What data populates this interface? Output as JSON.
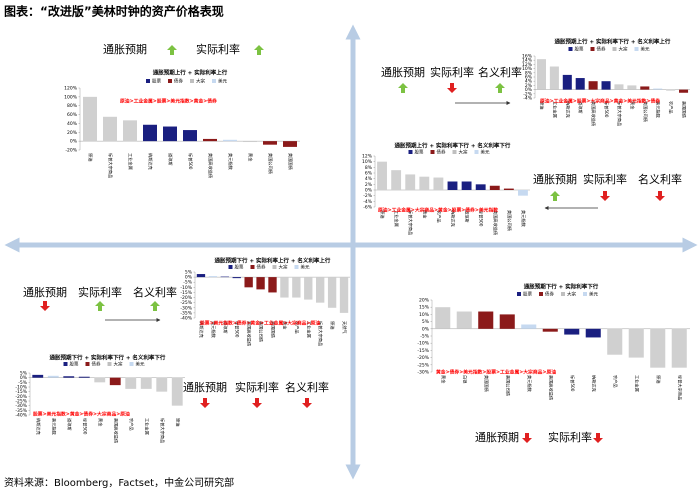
{
  "header": {
    "title": "图表：“改进版”美林时钟的资产价格表现",
    "source": "资料来源：Bloomberg，Factset，中金公司研究部"
  },
  "quadrants": [
    {
      "indicators": [
        {
          "label": "通胀预期",
          "dir": "up"
        },
        {
          "label": "实际利率",
          "dir": "up"
        }
      ]
    },
    {
      "indicators": [
        {
          "label": "通胀预期",
          "dir": "up"
        },
        {
          "label": "实际利率",
          "dir": "down"
        },
        {
          "label": "名义利率",
          "dir": "up"
        }
      ]
    },
    {
      "indicators": [
        {
          "label": "通胀预期",
          "dir": "up"
        },
        {
          "label": "实际利率",
          "dir": "down"
        },
        {
          "label": "名义利率",
          "dir": "down"
        }
      ]
    },
    {
      "indicators": [
        {
          "label": "通胀预期",
          "dir": "down"
        },
        {
          "label": "实际利率",
          "dir": "up"
        },
        {
          "label": "名义利率",
          "dir": "up"
        }
      ]
    },
    {
      "indicators": [
        {
          "label": "通胀预期",
          "dir": "down"
        },
        {
          "label": "实际利率",
          "dir": "down"
        },
        {
          "label": "名义利率",
          "dir": "down"
        }
      ]
    },
    {
      "indicators": [
        {
          "label": "通胀预期",
          "dir": "down"
        },
        {
          "label": "实际利率",
          "dir": "down"
        }
      ]
    }
  ],
  "chart_data": [
    {
      "type": "bar",
      "title": "通胀预期上行 + 实际利率上行",
      "annotation": "原油>工业金属>股票>美元指数>黄金>债券",
      "legend": [
        {
          "name": "股票",
          "color": "#1a1f80"
        },
        {
          "name": "债券",
          "color": "#8b1a1a"
        },
        {
          "name": "大宗",
          "color": "#bfbfbf"
        },
        {
          "name": "美元",
          "color": "#c6d9f0"
        }
      ],
      "categories": [
        "原油",
        "标普大宗商品",
        "工业金属",
        "纳斯达克",
        "道琼斯",
        "标普500",
        "美国高收益债",
        "美元指数",
        "黄金",
        "美国公司债",
        "美国国债"
      ],
      "values": [
        100,
        55,
        47,
        37,
        33,
        25,
        5,
        3,
        -2,
        -8,
        -13
      ],
      "colors": [
        "#d0d0d0",
        "#d0d0d0",
        "#d0d0d0",
        "#1a1f80",
        "#1a1f80",
        "#1a1f80",
        "#8b1a1a",
        "#c6d9f0",
        "#d0d0d0",
        "#8b1a1a",
        "#8b1a1a"
      ],
      "ylim": [
        -20,
        120
      ],
      "yticks": [
        {
          "value": 120,
          "label": "120%"
        },
        {
          "value": 100,
          "label": "100%"
        },
        {
          "value": 80,
          "label": "80%"
        },
        {
          "value": 60,
          "label": "60%"
        },
        {
          "value": 40,
          "label": "40%"
        },
        {
          "value": 20,
          "label": "20%"
        },
        {
          "value": 0,
          "label": "0%"
        },
        {
          "value": -20,
          "label": "-20%"
        }
      ]
    },
    {
      "type": "bar",
      "title": "通胀预期上行 + 实际利率下行 + 名义利率上行",
      "annotation": "原油>工业金属>股票>大宗商品>黄金>美元指数>债券",
      "legend": [
        {
          "name": "股票",
          "color": "#1a1f80"
        },
        {
          "name": "债券",
          "color": "#8b1a1a"
        },
        {
          "name": "大宗",
          "color": "#bfbfbf"
        },
        {
          "name": "美元",
          "color": "#c6d9f0"
        }
      ],
      "categories": [
        "原油",
        "工业金属",
        "纳斯达克",
        "道琼斯",
        "美国高收益债",
        "标普500",
        "标普大宗商品",
        "黄金",
        "美国公司债",
        "美元指数",
        "农产品",
        "美国国债"
      ],
      "values": [
        14.5,
        11,
        7,
        5.5,
        4,
        4,
        2.5,
        2,
        1.5,
        0.5,
        -0.5,
        -1.5
      ],
      "colors": [
        "#d0d0d0",
        "#d0d0d0",
        "#1a1f80",
        "#1a1f80",
        "#8b1a1a",
        "#1a1f80",
        "#d0d0d0",
        "#d0d0d0",
        "#8b1a1a",
        "#c6d9f0",
        "#d0d0d0",
        "#8b1a1a"
      ],
      "ylim": [
        -4,
        16
      ],
      "yticks": [
        {
          "value": 16,
          "label": "16%"
        },
        {
          "value": 14,
          "label": "14%"
        },
        {
          "value": 12,
          "label": "12%"
        },
        {
          "value": 10,
          "label": "10%"
        },
        {
          "value": 8,
          "label": "8%"
        },
        {
          "value": 6,
          "label": "6%"
        },
        {
          "value": 4,
          "label": "4%"
        },
        {
          "value": 2,
          "label": "2%"
        },
        {
          "value": 0,
          "label": "0%"
        },
        {
          "value": -2,
          "label": "-2%"
        },
        {
          "value": -4,
          "label": "-4%"
        }
      ]
    },
    {
      "type": "bar",
      "title": "通胀预期上行 + 实际利率下行 + 名义利率下行",
      "annotation": "原油>工业金属>大宗商品>黄金>股票>债券>美元指数",
      "legend": [
        {
          "name": "股票",
          "color": "#1a1f80"
        },
        {
          "name": "债券",
          "color": "#8b1a1a"
        },
        {
          "name": "大宗",
          "color": "#bfbfbf"
        },
        {
          "name": "美元",
          "color": "#c6d9f0"
        }
      ],
      "categories": [
        "原油",
        "工业金属",
        "标普大宗商品",
        "黄金",
        "农产品",
        "纳斯达克",
        "道琼斯",
        "标普500",
        "美国高收益债",
        "美国公司债",
        "美元指数"
      ],
      "values": [
        10,
        7,
        5.5,
        4.7,
        4.4,
        3,
        3,
        2,
        1.5,
        0.5,
        -2
      ],
      "colors": [
        "#d0d0d0",
        "#d0d0d0",
        "#d0d0d0",
        "#d0d0d0",
        "#d0d0d0",
        "#1a1f80",
        "#1a1f80",
        "#1a1f80",
        "#8b1a1a",
        "#8b1a1a",
        "#c6d9f0"
      ],
      "ylim": [
        -6,
        12
      ],
      "yticks": [
        {
          "value": 12,
          "label": "12%"
        },
        {
          "value": 10,
          "label": "10%"
        },
        {
          "value": 8,
          "label": "8%"
        },
        {
          "value": 6,
          "label": "6%"
        },
        {
          "value": 4,
          "label": "4%"
        },
        {
          "value": 2,
          "label": "2%"
        },
        {
          "value": 0,
          "label": "0%"
        },
        {
          "value": -2,
          "label": "-2%"
        },
        {
          "value": -4,
          "label": "-4%"
        },
        {
          "value": -6,
          "label": "-6%"
        }
      ]
    },
    {
      "type": "bar",
      "title": "通胀预期下行 + 实际利率上行 + 名义利率上行",
      "annotation": "股票>美元指数>债券>黄金>工业金属>大宗商品>原油",
      "legend": [
        {
          "name": "股票",
          "color": "#1a1f80"
        },
        {
          "name": "债券",
          "color": "#8b1a1a"
        },
        {
          "name": "大宗",
          "color": "#bfbfbf"
        },
        {
          "name": "美元",
          "color": "#c6d9f0"
        }
      ],
      "categories": [
        "纳斯达克",
        "美元指数",
        "道琼斯",
        "标普500",
        "美国高收益债",
        "美国公司债",
        "美国国债",
        "黄金",
        "农产品",
        "工业金属",
        "标普大宗商品",
        "原油",
        "天然气"
      ],
      "values": [
        3,
        1,
        0.5,
        -1,
        -10,
        -12,
        -15,
        -20,
        -20,
        -22,
        -25,
        -30,
        -35
      ],
      "colors": [
        "#1a1f80",
        "#c6d9f0",
        "#1a1f80",
        "#1a1f80",
        "#8b1a1a",
        "#8b1a1a",
        "#8b1a1a",
        "#d0d0d0",
        "#d0d0d0",
        "#d0d0d0",
        "#d0d0d0",
        "#d0d0d0",
        "#d0d0d0"
      ],
      "ylim": [
        -40,
        5
      ],
      "yticks": [
        {
          "value": 5,
          "label": "5%"
        },
        {
          "value": 0,
          "label": "0%"
        },
        {
          "value": -5,
          "label": "-5%"
        },
        {
          "value": -10,
          "label": "-10%"
        },
        {
          "value": -15,
          "label": "-15%"
        },
        {
          "value": -20,
          "label": "-20%"
        },
        {
          "value": -25,
          "label": "-25%"
        },
        {
          "value": -30,
          "label": "-30%"
        },
        {
          "value": -35,
          "label": "-35%"
        },
        {
          "value": -40,
          "label": "-40%"
        }
      ]
    },
    {
      "type": "bar",
      "title": "通胀预期下行 + 实际利率下行 + 名义利率下行",
      "annotation": "股票>美元指数>黄金>债券>大宗商品>原油",
      "legend": [
        {
          "name": "股票",
          "color": "#1a1f80"
        },
        {
          "name": "债券",
          "color": "#8b1a1a"
        },
        {
          "name": "大宗",
          "color": "#bfbfbf"
        },
        {
          "name": "美元",
          "color": "#c6d9f0"
        }
      ],
      "categories": [
        "纳斯达克",
        "美元指数",
        "道琼斯",
        "标普500",
        "黄金",
        "美国高收益债",
        "农产品",
        "工业金属",
        "标普大宗商品",
        "原油"
      ],
      "values": [
        3,
        2,
        1.5,
        1,
        -5,
        -8,
        -12,
        -12,
        -15,
        -30
      ],
      "colors": [
        "#1a1f80",
        "#c6d9f0",
        "#1a1f80",
        "#1a1f80",
        "#d0d0d0",
        "#8b1a1a",
        "#d0d0d0",
        "#d0d0d0",
        "#d0d0d0",
        "#d0d0d0"
      ],
      "ylim": [
        -40,
        5
      ],
      "yticks": [
        {
          "value": 5,
          "label": "5%"
        },
        {
          "value": 0,
          "label": "0%"
        },
        {
          "value": -5,
          "label": "-5%"
        },
        {
          "value": -10,
          "label": "-10%"
        },
        {
          "value": -15,
          "label": "-15%"
        },
        {
          "value": -20,
          "label": "-20%"
        },
        {
          "value": -25,
          "label": "-25%"
        },
        {
          "value": -30,
          "label": "-30%"
        },
        {
          "value": -35,
          "label": "-35%"
        },
        {
          "value": -40,
          "label": "-40%"
        }
      ]
    },
    {
      "type": "bar",
      "title": "通胀预期下行 + 实际利率下行",
      "annotation": "黄金>债券>美元指数>股票>工业金属>大宗商品>原油",
      "legend": [
        {
          "name": "股票",
          "color": "#1a1f80"
        },
        {
          "name": "债券",
          "color": "#8b1a1a"
        },
        {
          "name": "大宗",
          "color": "#bfbfbf"
        },
        {
          "name": "美元",
          "color": "#c6d9f0"
        }
      ],
      "categories": [
        "黄金",
        "白银",
        "美国国债",
        "美国公司债",
        "美元指数",
        "美国高收益债",
        "标普500",
        "纳斯达克",
        "农产品",
        "工业金属",
        "原油",
        "标普大宗商品"
      ],
      "values": [
        15,
        12,
        12,
        10,
        3,
        -2,
        -4,
        -6,
        -18,
        -20,
        -27,
        -27
      ],
      "colors": [
        "#d0d0d0",
        "#d0d0d0",
        "#8b1a1a",
        "#8b1a1a",
        "#c6d9f0",
        "#8b1a1a",
        "#1a1f80",
        "#1a1f80",
        "#d0d0d0",
        "#d0d0d0",
        "#d0d0d0",
        "#d0d0d0"
      ],
      "ylim": [
        -30,
        20
      ],
      "yticks": [
        {
          "value": 20,
          "label": "20%"
        },
        {
          "value": 15,
          "label": "15%"
        },
        {
          "value": 10,
          "label": "10%"
        },
        {
          "value": 5,
          "label": "5%"
        },
        {
          "value": 0,
          "label": "0%"
        },
        {
          "value": -5,
          "label": "-5%"
        },
        {
          "value": -10,
          "label": "-10%"
        },
        {
          "value": -15,
          "label": "-15%"
        },
        {
          "value": -20,
          "label": "-20%"
        },
        {
          "value": -25,
          "label": "-25%"
        },
        {
          "value": -30,
          "label": "-30%"
        }
      ]
    }
  ]
}
